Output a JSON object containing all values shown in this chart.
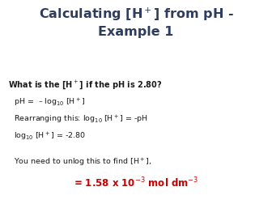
{
  "bg_color": "#ffffff",
  "title_color": "#2e3c5e",
  "body_color": "#1a1a1a",
  "red_color": "#cc0000",
  "figsize": [
    3.36,
    2.52
  ],
  "dpi": 100,
  "title_text": "Calculating [H$^+$] from pH -\nExample 1",
  "title_fontsize": 11.5,
  "question_text": "What is the [H$^+$] if the pH is 2.80?",
  "question_fontsize": 7.0,
  "body_fontsize": 6.8,
  "red_fontsize": 8.5,
  "body_lines": [
    "pH =  – log$_{10}$ [H$^+$]",
    "Rearranging this: log$_{10}$ [H$^+$] = -pH",
    "log$_{10}$ [H$^+$] = -2.80"
  ],
  "unlog_line": "You need to unlog this to find [H$^+$],",
  "answer_line": "= 1.58 x 10$^{-3}$ mol dm$^{-3}$"
}
